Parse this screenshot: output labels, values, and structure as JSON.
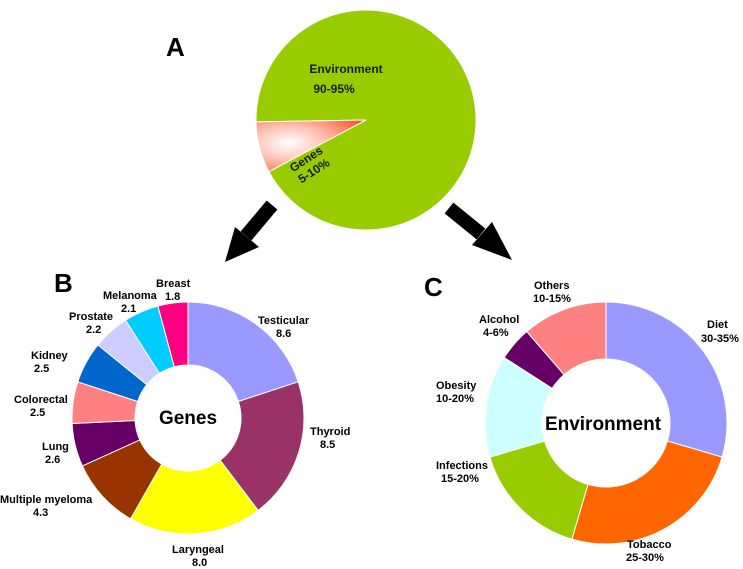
{
  "colors": {
    "environment": "#99cc00",
    "genes_slice": "#ff8866",
    "arrow": "#000000"
  },
  "chart_data": [
    {
      "id": "A",
      "panel_label": "A",
      "type": "pie",
      "slices": [
        {
          "label": "Environment",
          "value_text": "90-95%",
          "value": 92.5,
          "color": "#99cc00"
        },
        {
          "label": "Genes",
          "value_text": "5-10%",
          "value": 7.5,
          "color": "#ff8866"
        }
      ]
    },
    {
      "id": "B",
      "panel_label": "B",
      "type": "pie",
      "donut": true,
      "center_label": "Genes",
      "slices": [
        {
          "label": "Testicular",
          "value": 8.6,
          "color": "#9999ff"
        },
        {
          "label": "Thyroid",
          "value": 8.5,
          "color": "#993366"
        },
        {
          "label": "Laryngeal",
          "value": 8.0,
          "color": "#ffff00"
        },
        {
          "label": "Multiple myeloma",
          "value": 4.3,
          "color": "#993300"
        },
        {
          "label": "Lung",
          "value": 2.6,
          "color": "#660066"
        },
        {
          "label": "Colorectal",
          "value": 2.5,
          "color": "#ff8080"
        },
        {
          "label": "Kidney",
          "value": 2.5,
          "color": "#0066cc"
        },
        {
          "label": "Prostate",
          "value": 2.2,
          "color": "#ccccff"
        },
        {
          "label": "Melanoma",
          "value": 2.1,
          "color": "#00ccff"
        },
        {
          "label": "Breast",
          "value": 1.8,
          "color": "#ff0080"
        }
      ]
    },
    {
      "id": "C",
      "panel_label": "C",
      "type": "pie",
      "donut": true,
      "center_label": "Environment",
      "slices": [
        {
          "label": "Diet",
          "value_text": "30-35%",
          "value": 32.5,
          "color": "#9999ff"
        },
        {
          "label": "Tobacco",
          "value_text": "25-30%",
          "value": 27.5,
          "color": "#ff6600"
        },
        {
          "label": "Infections",
          "value_text": "15-20%",
          "value": 17.5,
          "color": "#99cc00"
        },
        {
          "label": "Obesity",
          "value_text": "10-20%",
          "value": 15,
          "color": "#ccffff"
        },
        {
          "label": "Alcohol",
          "value_text": "4-6%",
          "value": 5,
          "color": "#660066"
        },
        {
          "label": "Others",
          "value_text": "10-15%",
          "value": 12.5,
          "color": "#ff8080"
        }
      ]
    }
  ]
}
